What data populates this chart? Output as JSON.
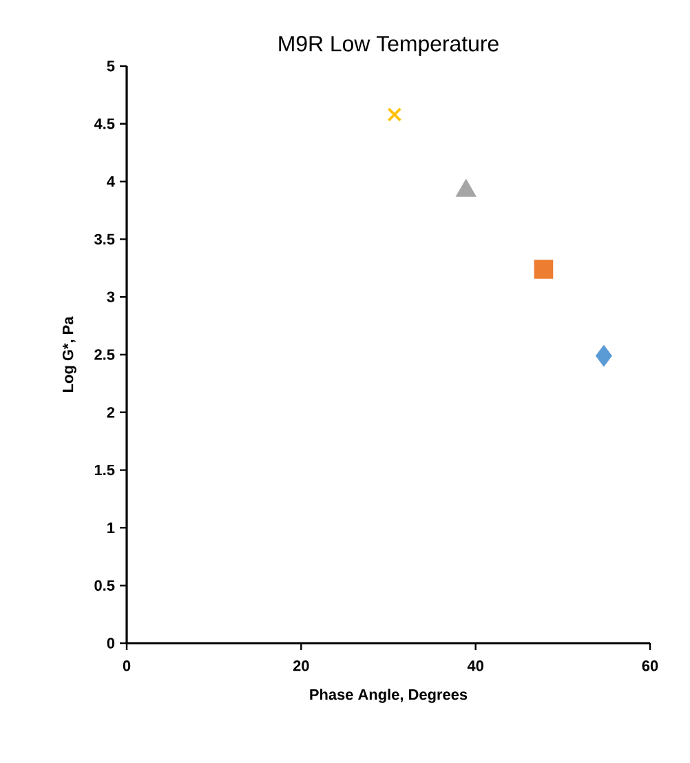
{
  "chart_data": {
    "type": "scatter",
    "title": "M9R Low Temperature",
    "xlabel": "Phase Angle, Degrees",
    "ylabel": "Log G*, Pa",
    "xlim": [
      0,
      60
    ],
    "xticks": [
      0,
      20,
      40,
      60
    ],
    "ylim": [
      0,
      5
    ],
    "yticks": [
      0,
      0.5,
      1,
      1.5,
      2,
      2.5,
      3,
      3.5,
      4,
      4.5,
      5
    ],
    "grid": false,
    "series": [
      {
        "color": "#5b9bd5",
        "marker": "diamond",
        "x": [
          54.7
        ],
        "values": [
          2.49
        ]
      },
      {
        "color": "#ed7d31",
        "marker": "square",
        "x": [
          47.8
        ],
        "values": [
          3.24
        ]
      },
      {
        "color": "#a5a5a5",
        "marker": "triangle",
        "x": [
          38.9
        ],
        "values": [
          3.92
        ]
      },
      {
        "color": "#ffc000",
        "marker": "cross",
        "x": [
          30.7
        ],
        "values": [
          4.58
        ]
      }
    ]
  }
}
